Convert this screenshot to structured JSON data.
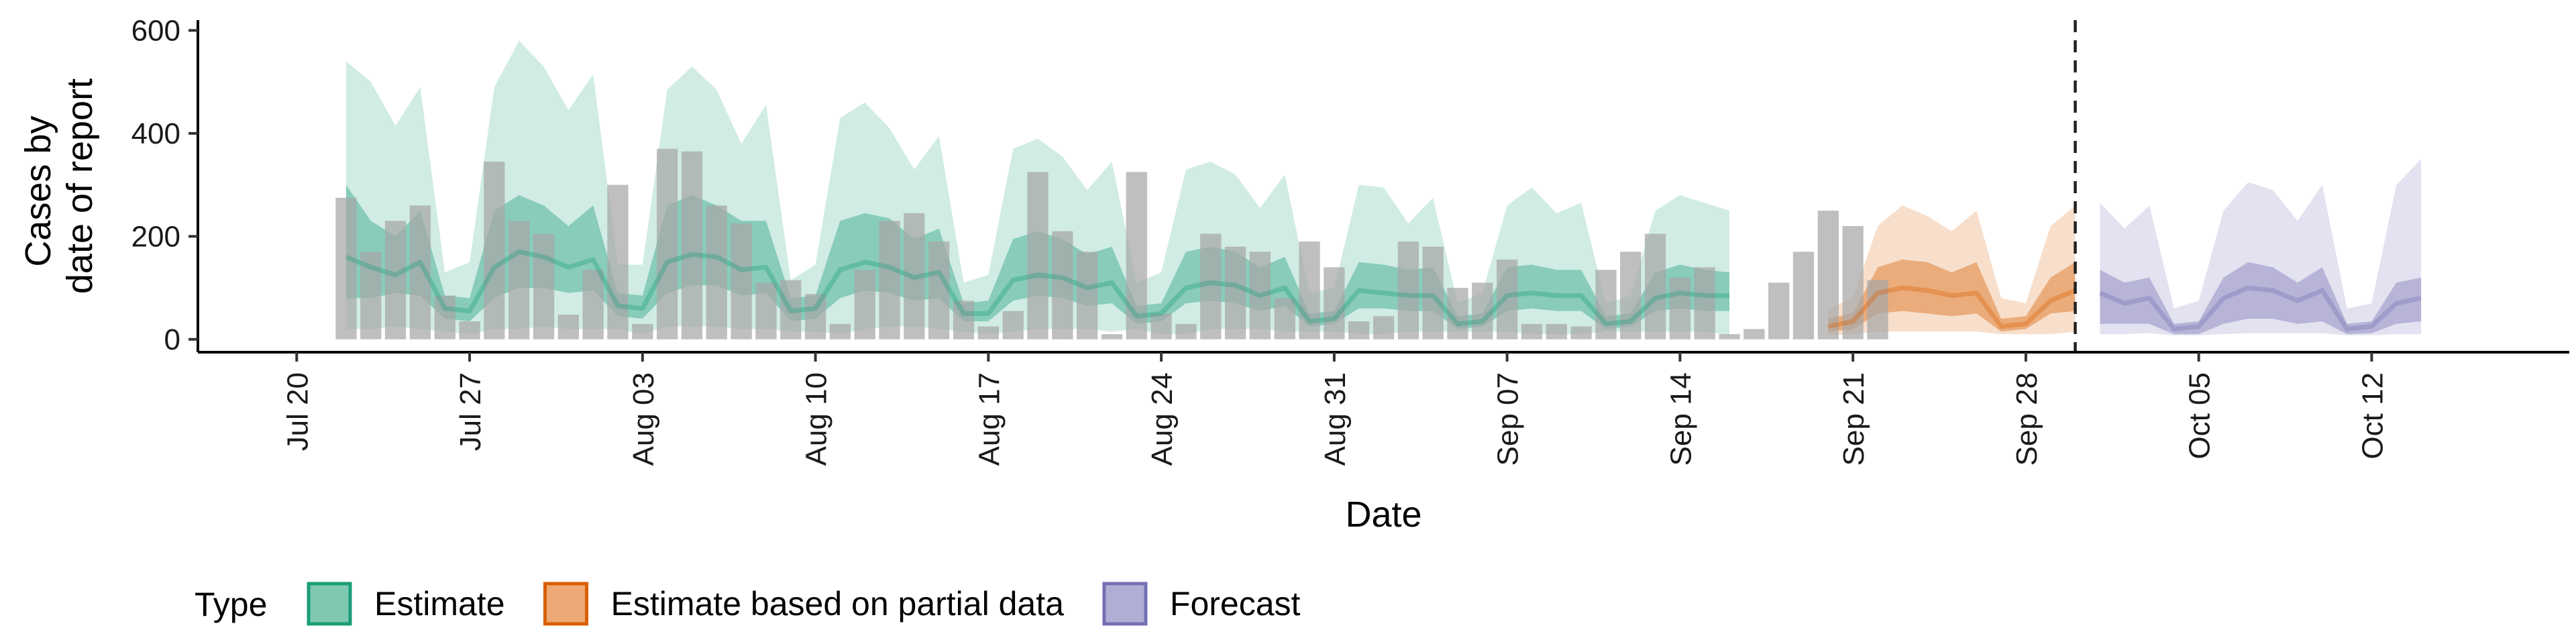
{
  "chart_data": {
    "type": "area",
    "xlabel": "Date",
    "ylabel_lines": [
      "Cases by",
      "date of report"
    ],
    "ylim": [
      -25,
      620
    ],
    "yticks": [
      0,
      200,
      400,
      600
    ],
    "xlim_start": "2020-07-16",
    "xlim_end": "2020-10-20",
    "xticks": [
      {
        "date": "2020-07-20",
        "label": "Jul 20"
      },
      {
        "date": "2020-07-27",
        "label": "Jul 27"
      },
      {
        "date": "2020-08-03",
        "label": "Aug 03"
      },
      {
        "date": "2020-08-10",
        "label": "Aug 10"
      },
      {
        "date": "2020-08-17",
        "label": "Aug 17"
      },
      {
        "date": "2020-08-24",
        "label": "Aug 24"
      },
      {
        "date": "2020-08-31",
        "label": "Aug 31"
      },
      {
        "date": "2020-09-07",
        "label": "Sep 07"
      },
      {
        "date": "2020-09-14",
        "label": "Sep 14"
      },
      {
        "date": "2020-09-21",
        "label": "Sep 21"
      },
      {
        "date": "2020-09-28",
        "label": "Sep 28"
      },
      {
        "date": "2020-10-05",
        "label": "Oct 05"
      },
      {
        "date": "2020-10-12",
        "label": "Oct 12"
      }
    ],
    "vline_date": "2020-09-30",
    "bars": {
      "start_date": "2020-07-22",
      "color": "#a6a6a6",
      "values": [
        275,
        170,
        230,
        260,
        85,
        35,
        345,
        230,
        205,
        48,
        135,
        300,
        30,
        370,
        365,
        260,
        225,
        110,
        115,
        88,
        30,
        135,
        230,
        245,
        190,
        75,
        25,
        55,
        325,
        210,
        170,
        10,
        325,
        50,
        30,
        205,
        180,
        170,
        80,
        190,
        140,
        35,
        45,
        190,
        180,
        100,
        110,
        155,
        30,
        30,
        25,
        135,
        170,
        205,
        120,
        140,
        10,
        20,
        110,
        170,
        250,
        220,
        115
      ]
    },
    "bands": {
      "start_date": "2020-07-22",
      "estimate": {
        "color": "#1b9e77",
        "lo90": [
          20,
          20,
          25,
          20,
          15,
          10,
          20,
          20,
          25,
          20,
          20,
          20,
          10,
          25,
          25,
          25,
          20,
          20,
          15,
          15,
          10,
          20,
          25,
          25,
          20,
          15,
          10,
          15,
          20,
          20,
          20,
          15,
          20,
          10,
          10,
          20,
          20,
          20,
          15,
          15,
          15,
          10,
          10,
          15,
          15,
          15,
          15,
          15,
          10,
          10,
          10,
          15,
          15,
          15,
          15,
          15,
          8,
          8,
          15,
          15,
          15,
          15,
          15
        ],
        "hi90": [
          540,
          500,
          415,
          490,
          130,
          150,
          490,
          580,
          530,
          445,
          515,
          145,
          145,
          485,
          530,
          485,
          380,
          455,
          115,
          145,
          430,
          460,
          410,
          330,
          395,
          110,
          125,
          370,
          390,
          355,
          290,
          345,
          110,
          130,
          330,
          345,
          320,
          255,
          320,
          90,
          100,
          300,
          295,
          225,
          275,
          70,
          90,
          260,
          295,
          245,
          265,
          70,
          85,
          250,
          280,
          265,
          250,
          null,
          null,
          null,
          null,
          null,
          null
        ],
        "lo50": [
          80,
          80,
          90,
          85,
          40,
          35,
          80,
          100,
          100,
          90,
          95,
          45,
          40,
          90,
          105,
          105,
          85,
          90,
          35,
          40,
          80,
          95,
          90,
          75,
          80,
          35,
          35,
          75,
          85,
          80,
          65,
          70,
          30,
          35,
          70,
          75,
          70,
          55,
          65,
          25,
          30,
          60,
          60,
          55,
          55,
          20,
          25,
          55,
          60,
          55,
          55,
          20,
          25,
          55,
          60,
          55,
          55,
          null,
          null,
          null,
          null,
          null,
          null
        ],
        "hi50": [
          300,
          230,
          200,
          250,
          85,
          80,
          250,
          280,
          260,
          220,
          260,
          90,
          85,
          260,
          280,
          260,
          230,
          230,
          80,
          85,
          230,
          245,
          235,
          195,
          215,
          70,
          75,
          195,
          210,
          195,
          165,
          180,
          65,
          70,
          170,
          180,
          170,
          140,
          160,
          50,
          55,
          150,
          145,
          135,
          140,
          45,
          50,
          140,
          145,
          135,
          135,
          45,
          50,
          130,
          145,
          135,
          130,
          null,
          null,
          null,
          null,
          null,
          null
        ],
        "median": [
          160,
          140,
          125,
          150,
          60,
          55,
          140,
          170,
          160,
          140,
          155,
          65,
          60,
          150,
          165,
          160,
          135,
          140,
          55,
          60,
          135,
          150,
          140,
          120,
          130,
          50,
          50,
          115,
          125,
          120,
          100,
          110,
          45,
          50,
          100,
          110,
          105,
          85,
          100,
          35,
          40,
          95,
          90,
          85,
          85,
          30,
          35,
          85,
          90,
          85,
          85,
          30,
          35,
          80,
          90,
          85,
          85,
          null,
          null,
          null,
          null,
          null,
          null
        ]
      },
      "partial": {
        "color": "#d95f02",
        "start_date": "2020-09-20",
        "lo90": [
          8,
          10,
          15,
          15,
          15,
          15,
          15,
          10,
          10,
          10,
          15
        ],
        "hi90": [
          60,
          80,
          220,
          260,
          240,
          210,
          250,
          80,
          70,
          220,
          260
        ],
        "lo50": [
          15,
          20,
          50,
          55,
          50,
          45,
          50,
          15,
          20,
          50,
          55
        ],
        "hi50": [
          40,
          50,
          140,
          155,
          150,
          130,
          150,
          40,
          45,
          120,
          150
        ],
        "median": [
          25,
          35,
          90,
          100,
          95,
          85,
          90,
          25,
          30,
          75,
          95
        ]
      },
      "forecast": {
        "color": "#7570b3",
        "start_date": "2020-10-01",
        "lo90": [
          10,
          10,
          12,
          8,
          8,
          10,
          12,
          12,
          12,
          12,
          8,
          8,
          10,
          10
        ],
        "hi90": [
          265,
          215,
          260,
          60,
          75,
          250,
          305,
          290,
          230,
          300,
          60,
          70,
          300,
          350
        ],
        "lo50": [
          30,
          30,
          30,
          10,
          10,
          30,
          40,
          40,
          30,
          35,
          10,
          12,
          30,
          35
        ],
        "hi50": [
          135,
          110,
          120,
          30,
          35,
          120,
          150,
          140,
          110,
          140,
          30,
          35,
          110,
          120
        ],
        "median": [
          90,
          70,
          80,
          20,
          25,
          80,
          100,
          95,
          75,
          95,
          20,
          25,
          70,
          80
        ]
      }
    },
    "legend": {
      "title": "Type",
      "placement": "bottom-left",
      "items": [
        {
          "label": "Estimate",
          "fill": "#7fc9b0",
          "stroke": "#1b9e77"
        },
        {
          "label": "Estimate based on partial data",
          "fill": "#eea876",
          "stroke": "#d95f02"
        },
        {
          "label": "Forecast",
          "fill": "#b1aed6",
          "stroke": "#7570b3"
        }
      ]
    }
  }
}
